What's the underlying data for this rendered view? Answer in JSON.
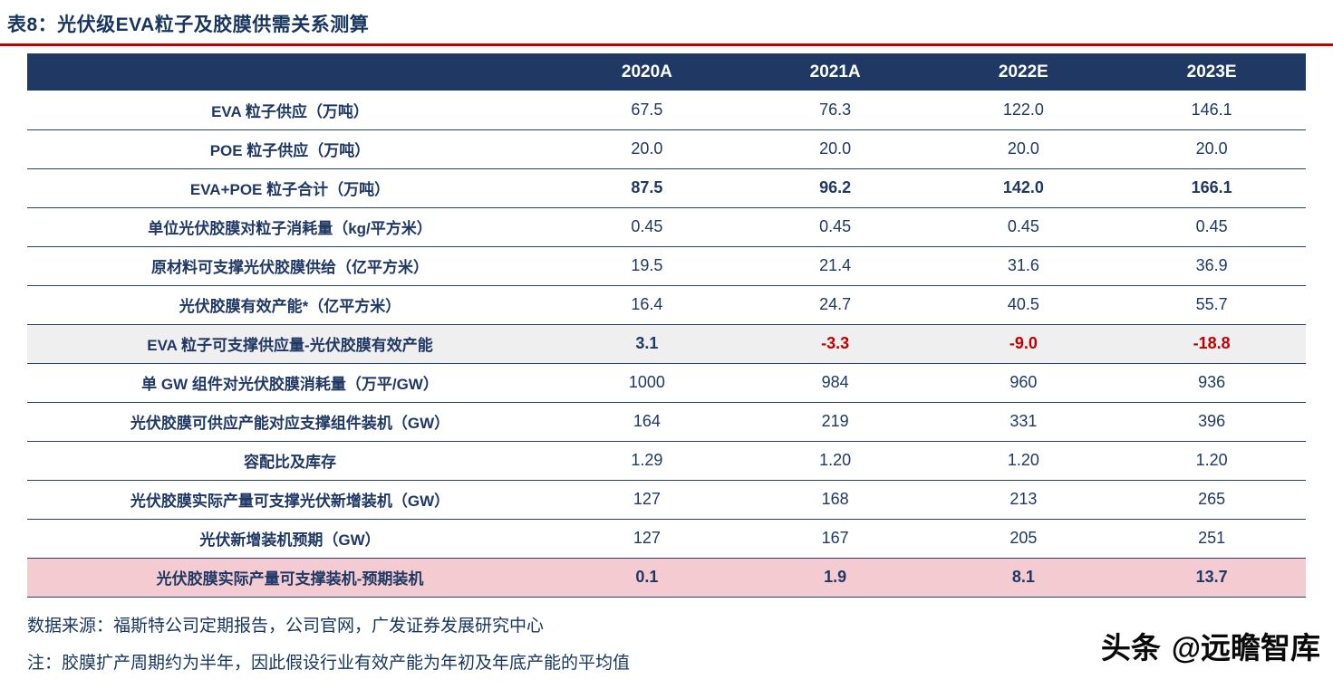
{
  "header": {
    "title": "表8：光伏级EVA粒子及胶膜供需关系测算"
  },
  "table": {
    "columns": [
      "",
      "2020A",
      "2021A",
      "2022E",
      "2023E"
    ],
    "rows": [
      {
        "label": "EVA 粒子供应（万吨）",
        "values": [
          "67.5",
          "76.3",
          "122.0",
          "146.1"
        ],
        "bold": false,
        "highlight": ""
      },
      {
        "label": "POE 粒子供应（万吨）",
        "values": [
          "20.0",
          "20.0",
          "20.0",
          "20.0"
        ],
        "bold": false,
        "highlight": ""
      },
      {
        "label": "EVA+POE 粒子合计（万吨）",
        "values": [
          "87.5",
          "96.2",
          "142.0",
          "166.1"
        ],
        "bold": true,
        "highlight": ""
      },
      {
        "label": "单位光伏胶膜对粒子消耗量（kg/平方米）",
        "values": [
          "0.45",
          "0.45",
          "0.45",
          "0.45"
        ],
        "bold": false,
        "highlight": ""
      },
      {
        "label": "原材料可支撑光伏胶膜供给（亿平方米）",
        "values": [
          "19.5",
          "21.4",
          "31.6",
          "36.9"
        ],
        "bold": false,
        "highlight": ""
      },
      {
        "label": "光伏胶膜有效产能*（亿平方米）",
        "values": [
          "16.4",
          "24.7",
          "40.5",
          "55.7"
        ],
        "bold": false,
        "highlight": ""
      },
      {
        "label": "EVA 粒子可支撑供应量-光伏胶膜有效产能",
        "values": [
          "3.1",
          "-3.3",
          "-9.0",
          "-18.8"
        ],
        "bold": true,
        "highlight": "gray"
      },
      {
        "label": "单 GW 组件对光伏胶膜消耗量（万平/GW）",
        "values": [
          "1000",
          "984",
          "960",
          "936"
        ],
        "bold": false,
        "highlight": ""
      },
      {
        "label": "光伏胶膜可供应产能对应支撑组件装机（GW）",
        "values": [
          "164",
          "219",
          "331",
          "396"
        ],
        "bold": false,
        "highlight": ""
      },
      {
        "label": "容配比及库存",
        "values": [
          "1.29",
          "1.20",
          "1.20",
          "1.20"
        ],
        "bold": false,
        "highlight": ""
      },
      {
        "label": "光伏胶膜实际产量可支撑光伏新增装机（GW）",
        "values": [
          "127",
          "168",
          "213",
          "265"
        ],
        "bold": false,
        "highlight": ""
      },
      {
        "label": "光伏新增装机预期（GW）",
        "values": [
          "127",
          "167",
          "205",
          "251"
        ],
        "bold": false,
        "highlight": ""
      },
      {
        "label": "光伏胶膜实际产量可支撑装机-预期装机",
        "values": [
          "0.1",
          "1.9",
          "8.1",
          "13.7"
        ],
        "bold": true,
        "highlight": "pink"
      }
    ]
  },
  "footer": {
    "source": "数据来源：福斯特公司定期报告，公司官网，广发证券发展研究中心",
    "note": "注：胶膜扩产周期约为半年，因此假设行业有效产能为年初及年底产能的平均值",
    "watermark_brand": "头条",
    "watermark_handle": "@远瞻智库"
  },
  "colors": {
    "navy_header": "#1F3864",
    "title_red_rule": "#BE0000",
    "negative_value": "#C00000",
    "gray_highlight_row": "#EFEFEF",
    "pink_highlight_row": "#F3CBD0"
  }
}
